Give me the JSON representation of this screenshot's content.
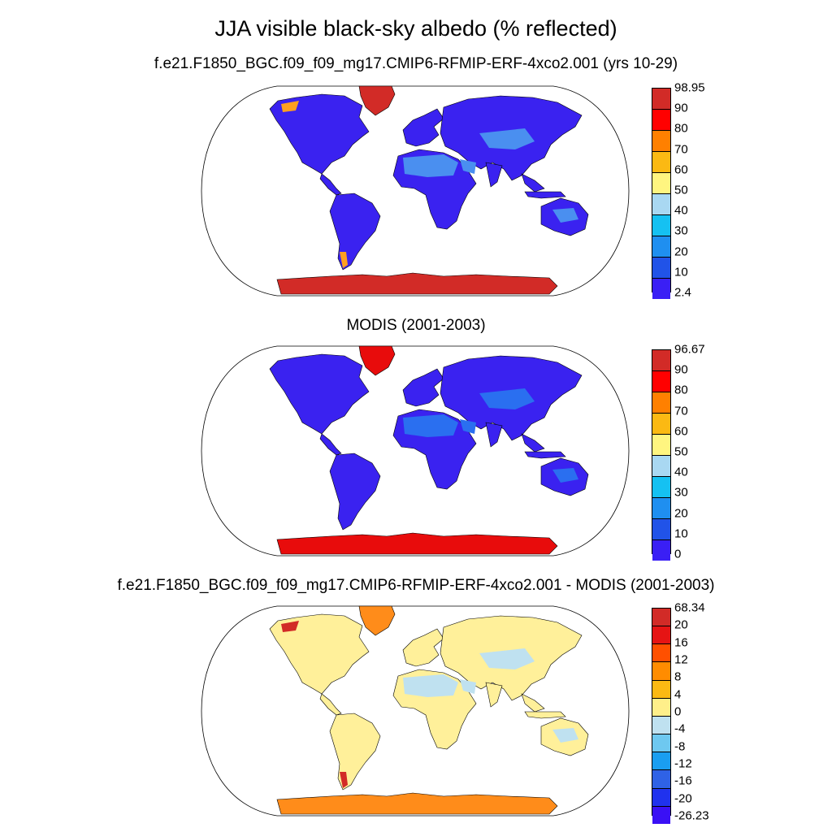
{
  "title": "JJA visible black-sky albedo (% reflected)",
  "panels": [
    {
      "title": "f.e21.F1850_BGC.f09_f09_mg17.CMIP6-RFMIP-ERF-4xco2.001 (yrs 10-29)",
      "colorbar": {
        "labels": [
          "98.95",
          "90",
          "80",
          "70",
          "60",
          "50",
          "40",
          "30",
          "20",
          "10",
          "2.4"
        ],
        "colors": [
          "#d22b27",
          "#ff0000",
          "#ff8000",
          "#fbb913",
          "#fff580",
          "#a9d8f2",
          "#15c1f2",
          "#1f8ff0",
          "#2153e8",
          "#3a1ff5"
        ]
      },
      "land": {
        "base": "#3a22f0",
        "desert": "#4a8ff0",
        "ice": "#d22b27",
        "alpine": "#ffa020"
      }
    },
    {
      "title": "MODIS (2001-2003)",
      "colorbar": {
        "labels": [
          "96.67",
          "90",
          "80",
          "70",
          "60",
          "50",
          "40",
          "30",
          "20",
          "10",
          "0"
        ],
        "colors": [
          "#d22b27",
          "#ff0000",
          "#ff8000",
          "#fbb913",
          "#fff580",
          "#a9d8f2",
          "#15c1f2",
          "#1f8ff0",
          "#2153e8",
          "#3a1ff5"
        ]
      },
      "land": {
        "base": "#3a22f0",
        "desert": "#2a6ff0",
        "ice": "#e80c0c",
        "alpine": "#3a22f0"
      }
    },
    {
      "title": "f.e21.F1850_BGC.f09_f09_mg17.CMIP6-RFMIP-ERF-4xco2.001 - MODIS (2001-2003)",
      "colorbar": {
        "labels": [
          "68.34",
          "20",
          "16",
          "12",
          "8",
          "4",
          "0",
          "-4",
          "-8",
          "-12",
          "-16",
          "-20",
          "-26.23"
        ],
        "colors": [
          "#d22b27",
          "#e61414",
          "#ff5000",
          "#ff8c00",
          "#fbb913",
          "#ffef8a",
          "#bfe1f0",
          "#6ec8f0",
          "#1a9ef0",
          "#2f62e6",
          "#2032ee",
          "#3a10f5"
        ]
      },
      "land": {
        "base": "#fff09a",
        "desert": "#bfe1f0",
        "ice": "#ff8c1a",
        "alpine": "#d22b27"
      }
    }
  ]
}
